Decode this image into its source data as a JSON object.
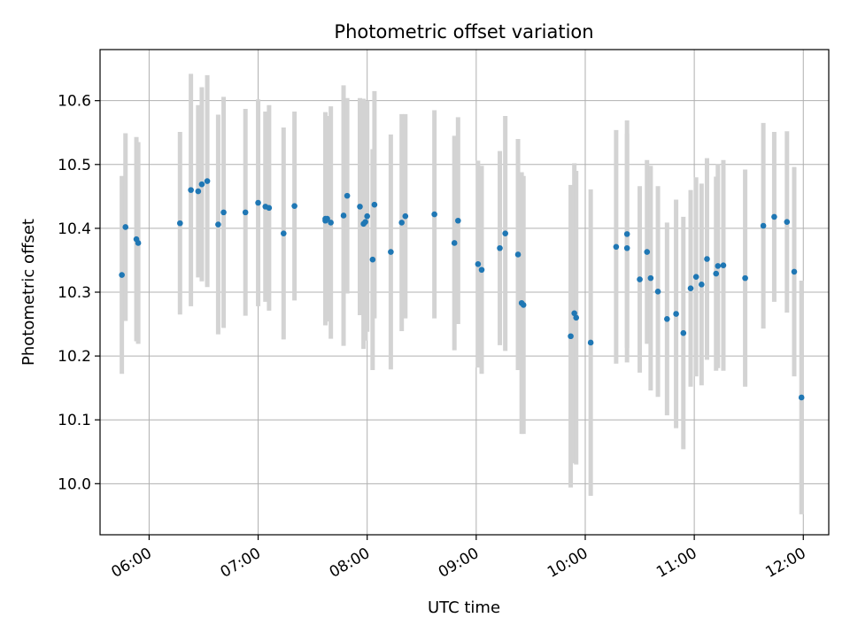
{
  "chart_data": {
    "type": "scatter",
    "title": "Photometric offset variation",
    "xlabel": "UTC time",
    "ylabel": "Photometric offset",
    "x_ticks": [
      "06:00",
      "07:00",
      "08:00",
      "09:00",
      "10:00",
      "11:00",
      "12:00"
    ],
    "y_ticks": [
      "10.0",
      "10.1",
      "10.2",
      "10.3",
      "10.4",
      "10.5",
      "10.6"
    ],
    "xlim": [
      "05:33",
      "12:14"
    ],
    "ylim": [
      9.92,
      10.68
    ],
    "grid": true,
    "colors": {
      "points": "#1f77b4",
      "error_bars": "#d3d3d3",
      "grid": "#b0b0b0"
    },
    "series": [
      {
        "x": [
          "05:45",
          "05:47",
          "05:53",
          "05:54",
          "06:17",
          "06:23",
          "06:27",
          "06:29",
          "06:32",
          "06:38",
          "06:41",
          "06:53",
          "07:00",
          "07:04",
          "07:06",
          "07:14",
          "07:20",
          "07:37",
          "07:37",
          "07:38",
          "07:40",
          "07:47",
          "07:49",
          "07:56",
          "07:58",
          "07:59",
          "08:00",
          "08:03",
          "08:04",
          "08:13",
          "08:19",
          "08:21",
          "08:37",
          "08:48",
          "08:50",
          "09:01",
          "09:03",
          "09:13",
          "09:16",
          "09:23",
          "09:25",
          "09:26",
          "09:52",
          "09:54",
          "09:55",
          "10:03",
          "10:17",
          "10:23",
          "10:23",
          "10:30",
          "10:34",
          "10:36",
          "10:40",
          "10:45",
          "10:50",
          "10:54",
          "10:58",
          "11:01",
          "11:04",
          "11:07",
          "11:12",
          "11:13",
          "11:16",
          "11:28",
          "11:38",
          "11:44",
          "11:51",
          "11:55",
          "11:59"
        ],
        "y": [
          10.327,
          10.402,
          10.383,
          10.377,
          10.408,
          10.46,
          10.458,
          10.469,
          10.474,
          10.406,
          10.425,
          10.425,
          10.44,
          10.434,
          10.432,
          10.392,
          10.435,
          10.412,
          10.415,
          10.415,
          10.409,
          10.42,
          10.451,
          10.434,
          10.407,
          10.41,
          10.419,
          10.351,
          10.437,
          10.363,
          10.409,
          10.419,
          10.422,
          10.377,
          10.412,
          10.344,
          10.335,
          10.369,
          10.392,
          10.359,
          10.283,
          10.28,
          10.231,
          10.267,
          10.26,
          10.221,
          10.371,
          10.391,
          10.369,
          10.32,
          10.363,
          10.322,
          10.301,
          10.258,
          10.266,
          10.236,
          10.306,
          10.324,
          10.312,
          10.352,
          10.329,
          10.341,
          10.342,
          10.322,
          10.404,
          10.418,
          10.41,
          10.332,
          10.135
        ],
        "y_error": [
          0.155,
          0.147,
          0.16,
          0.158,
          0.143,
          0.182,
          0.135,
          0.152,
          0.166,
          0.172,
          0.181,
          0.162,
          0.162,
          0.149,
          0.161,
          0.166,
          0.148,
          0.164,
          0.167,
          0.161,
          0.182,
          0.204,
          0.153,
          0.17,
          0.196,
          0.186,
          0.181,
          0.173,
          0.178,
          0.184,
          0.17,
          0.16,
          0.163,
          0.168,
          0.162,
          0.162,
          0.163,
          0.152,
          0.184,
          0.181,
          0.205,
          0.202,
          0.237,
          0.235,
          0.23,
          0.24,
          0.183,
          0.178,
          0.179,
          0.146,
          0.144,
          0.176,
          0.165,
          0.151,
          0.179,
          0.182,
          0.154,
          0.156,
          0.158,
          0.158,
          0.152,
          0.16,
          0.165,
          0.17,
          0.161,
          0.133,
          0.142,
          0.164,
          0.183
        ]
      }
    ]
  }
}
